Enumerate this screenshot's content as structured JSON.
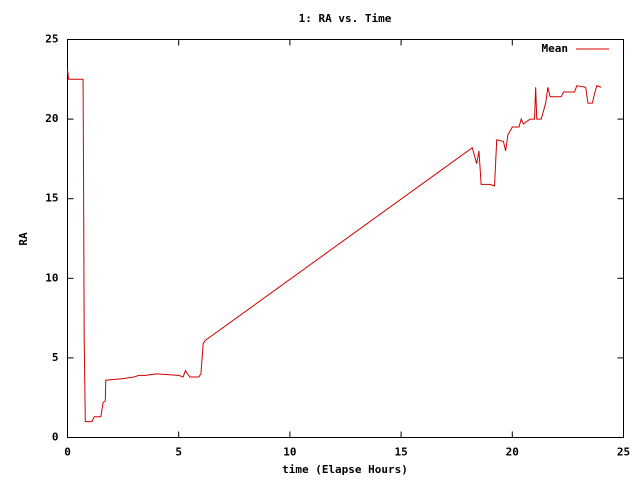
{
  "chart_data": {
    "type": "line",
    "title": "1: RA vs. Time",
    "xlabel": "time (Elapse Hours)",
    "ylabel": "RA",
    "x": [
      0,
      0.05,
      0.7,
      0.72,
      0.75,
      0.8,
      1.1,
      1.2,
      1.5,
      1.6,
      1.7,
      1.72,
      2.5,
      3.0,
      3.2,
      3.5,
      4.0,
      5.0,
      5.2,
      5.3,
      5.5,
      5.9,
      6.0,
      6.1,
      6.2,
      18.2,
      18.4,
      18.5,
      18.6,
      19.0,
      19.2,
      19.3,
      19.6,
      19.7,
      19.8,
      20.0,
      20.3,
      20.4,
      20.5,
      20.8,
      21.0,
      21.05,
      21.1,
      21.3,
      21.5,
      21.6,
      21.7,
      22.2,
      22.3,
      22.8,
      22.9,
      23.3,
      23.4,
      23.6,
      23.7,
      23.8,
      24.0
    ],
    "series": [
      {
        "name": "Mean",
        "color": "#d00000",
        "values": [
          23.1,
          22.5,
          22.5,
          17.0,
          6.3,
          1.0,
          1.0,
          1.3,
          1.3,
          2.2,
          2.3,
          3.6,
          3.7,
          3.8,
          3.9,
          3.9,
          4.0,
          3.9,
          3.8,
          4.2,
          3.8,
          3.8,
          4.0,
          5.9,
          6.1,
          18.2,
          17.2,
          18.0,
          15.9,
          15.9,
          15.8,
          18.7,
          18.6,
          18.0,
          19.0,
          19.5,
          19.5,
          20.0,
          19.7,
          20.0,
          20.0,
          22.0,
          20.0,
          20.0,
          21.0,
          22.0,
          21.4,
          21.4,
          21.7,
          21.7,
          22.1,
          22.0,
          21.0,
          21.0,
          21.6,
          22.1,
          22.0
        ]
      }
    ],
    "xlim": [
      0,
      25
    ],
    "xticks": [
      0,
      5,
      10,
      15,
      20,
      25
    ],
    "ylim": [
      0,
      25
    ],
    "yticks": [
      0,
      5,
      10,
      15,
      20,
      25
    ],
    "grid": false,
    "legend": "top-right"
  }
}
